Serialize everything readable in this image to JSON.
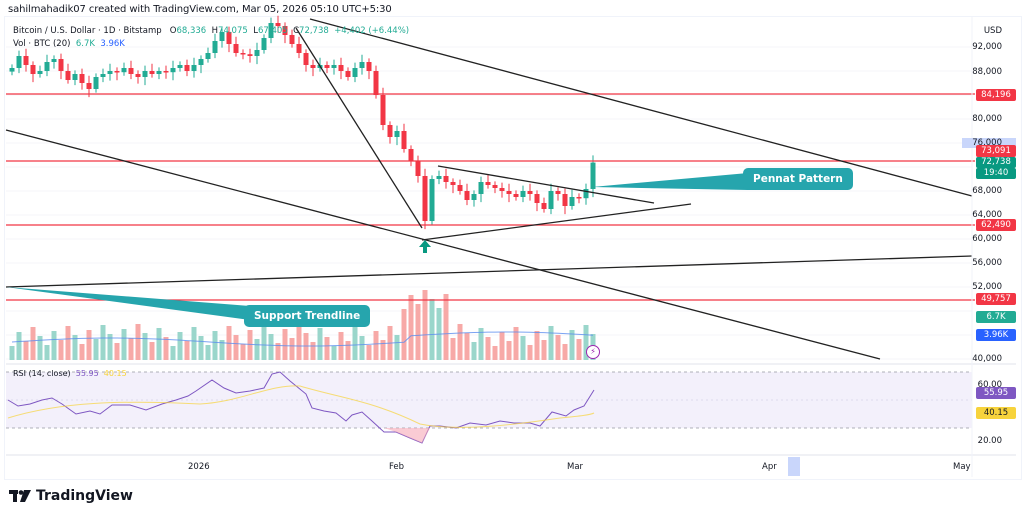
{
  "credit": "sahilmahadik07 created with TradingView.com, Mar 05, 2026 05:10 UTC+5:30",
  "legend": {
    "symbol": "Bitcoin / U.S. Dollar · 1D · Bitstamp",
    "open_label": "O",
    "open": "68,336",
    "high_label": "H",
    "high": "74,075",
    "low_label": "L",
    "low": "67,405",
    "close_label": "C",
    "close": "72,738",
    "change": "+4,402 (+6.44%)"
  },
  "volume_legend": {
    "label": "Vol · BTC (20)",
    "value1": "6.7K",
    "value2": "3.96K"
  },
  "rsi_legend": {
    "label": "RSI (14, close)",
    "value1": "55.95",
    "value2": "40.15"
  },
  "price_axis": {
    "currency": "USD",
    "ticks": [
      "92,000",
      "88,000",
      "80,000",
      "76,000",
      "68,000",
      "64,000",
      "60,000",
      "56,000",
      "52,000",
      "48,000",
      "40,000"
    ],
    "rsi_ticks": [
      "60.00",
      "20.00"
    ]
  },
  "tags": {
    "resistance_high": "84,196",
    "resistance_mid": "73,091",
    "last_price": "72,738",
    "countdown": "19:40",
    "support_1": "62,490",
    "support_2": "49,757",
    "vol_1": "6.7K",
    "vol_2": "3.96K",
    "rsi": "55.95",
    "rsi_ma": "40.15"
  },
  "time_axis": [
    "2026",
    "Feb",
    "Mar",
    "Apr",
    "May"
  ],
  "annotations": {
    "pennant": "Pennat Pattern",
    "support": "Support Trendline"
  },
  "brand": "TradingView",
  "colors": {
    "up": "#22ab94",
    "down": "#f23645",
    "line_red": "#f23645",
    "callout": "#26a5ad",
    "rsi": "#7e57c2",
    "rsi_ma": "#f7d33c",
    "volume_ma": "#2962ff"
  },
  "chart_data": {
    "type": "candlestick",
    "title": "Bitcoin / U.S. Dollar · 1D · Bitstamp",
    "ylabel": "USD",
    "ylim": [
      40000,
      96000
    ],
    "x_ticks": [
      "2026",
      "Feb",
      "Mar",
      "Apr",
      "May"
    ],
    "last_ohlc": {
      "open": 68336,
      "high": 74075,
      "low": 67405,
      "close": 72738,
      "change": 4402,
      "change_pct": 6.44
    },
    "horizontal_levels": [
      84196,
      73091,
      62490,
      49757
    ],
    "trendlines": [
      "descending channel upper",
      "descending channel lower",
      "ascending support trendline",
      "pennant upper",
      "pennant lower"
    ],
    "annotations": [
      "Pennat Pattern",
      "Support Trendline"
    ],
    "approx_closes": [
      88500,
      90500,
      89000,
      87500,
      88000,
      89500,
      90000,
      88000,
      86500,
      87500,
      86000,
      85000,
      87000,
      87500,
      88000,
      87800,
      88500,
      87500,
      87000,
      88000,
      87500,
      88000,
      87800,
      88500,
      89000,
      88000,
      89000,
      90000,
      91000,
      93000,
      94500,
      92500,
      91000,
      90800,
      90500,
      91500,
      93500,
      96000,
      95500,
      94000,
      92500,
      91000,
      89000,
      88500,
      89000,
      88500,
      89000,
      88000,
      87000,
      88500,
      89500,
      88000,
      84000,
      79000,
      77000,
      78000,
      75000,
      73000,
      70500,
      63000,
      70000,
      70500,
      69500,
      69000,
      68000,
      66500,
      67500,
      69500,
      69000,
      68500,
      68000,
      67500,
      67000,
      68000,
      67500,
      66000,
      65000,
      68000,
      67500,
      65500,
      67000,
      66800,
      68336,
      72738
    ],
    "rsi": {
      "value": 55.95,
      "ma": 40.15,
      "bands": [
        30,
        70
      ]
    },
    "volume": {
      "last": "6.7K",
      "ma": "3.96K"
    }
  }
}
